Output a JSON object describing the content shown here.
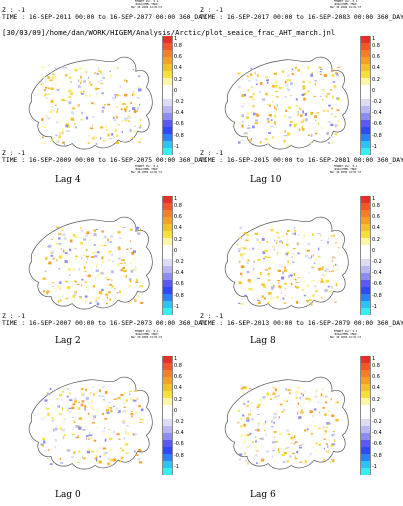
{
  "file_path": "[30/03/09]/home/dan/WORK/HIGEM/Analysis/Arctic/plot_seaice_frac_AHT_march.jnl",
  "ferret_stamp": [
    "FERRET Ver. 6.1",
    "NOAA/PMEL TMAP",
    "Mar 30 2009 14:01:17"
  ],
  "colorbar": {
    "colors": [
      "#e8302a",
      "#f2562a",
      "#f47f2a",
      "#f49f2a",
      "#f5c02a",
      "#f7df3c",
      "#fbf5a8",
      "#ffffff",
      "#ffffff",
      "#dcdcf5",
      "#b9b9f0",
      "#8c8cf2",
      "#5a5af3",
      "#2e4bf5",
      "#2b82f6",
      "#2ec3f5",
      "#34f0f0"
    ],
    "labels": [
      "1",
      "0.8",
      "0.6",
      "0.4",
      "0.2",
      "0",
      "-0.2",
      "-0.4",
      "-0.6",
      "-0.8",
      "-1"
    ]
  },
  "panels": [
    {
      "z_label": "Z : -1",
      "time_label": "TIME : 16-SEP-2011 00:00 to 16-SEP-2077 00:00 360_DAY",
      "lag_label": "Lag 4"
    },
    {
      "z_label": "Z : -1",
      "time_label": "TIME : 16-SEP-2017 00:00 to 16-SEP-2083 00:00 360_DAY",
      "lag_label": "Lag 10"
    },
    {
      "z_label": "Z : -1",
      "time_label": "TIME : 16-SEP-2009 00:00 to 16-SEP-2075 00:00 360_DAY",
      "lag_label": "Lag 2"
    },
    {
      "z_label": "Z : -1",
      "time_label": "TIME : 16-SEP-2015 00:00 to 16-SEP-2081 00:00 360_DAY",
      "lag_label": "Lag 8"
    },
    {
      "z_label": "Z : -1",
      "time_label": "TIME : 16-SEP-2007 00:00 to 16-SEP-2073 00:00 360_DAY",
      "lag_label": "Lag 0"
    },
    {
      "z_label": "Z : -1",
      "time_label": "TIME : 16-SEP-2013 00:00 to 16-SEP-2079 00:00 360_DAY",
      "lag_label": "Lag 6"
    }
  ]
}
